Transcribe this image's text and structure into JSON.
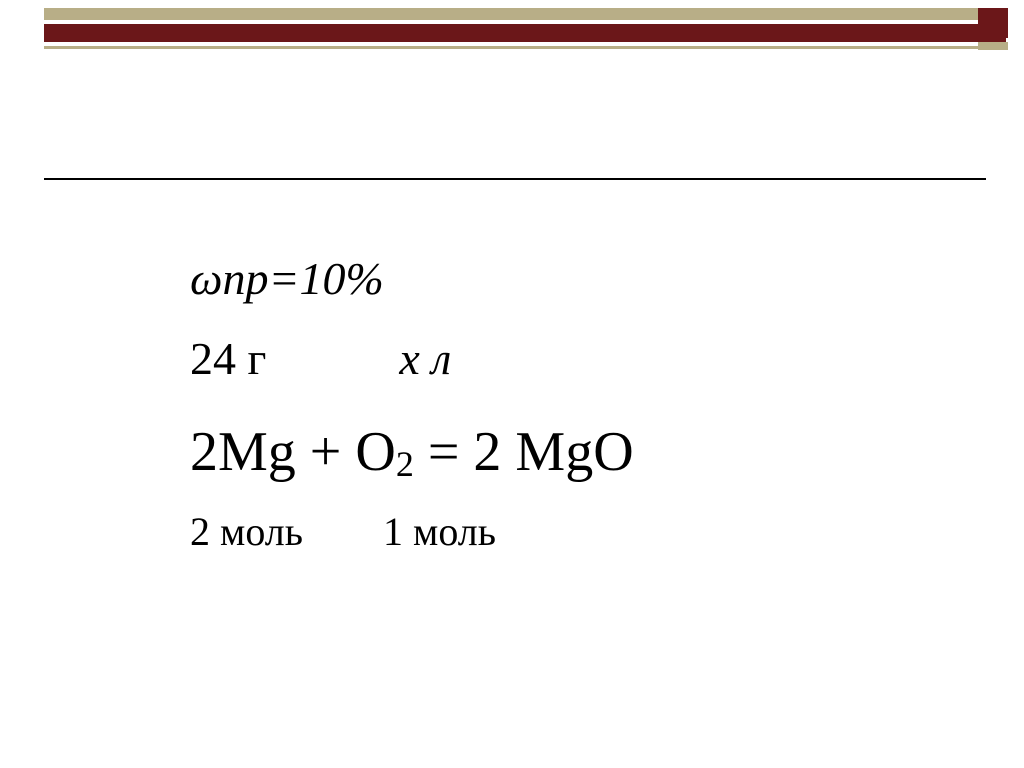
{
  "colors": {
    "beige": "#b8ae87",
    "red": "#6b1719",
    "black": "#000000",
    "white": "#ffffff"
  },
  "line1": "ωпр=10%",
  "line2_a": "24 г",
  "line2_b": "х л",
  "eq_a": "2Mg + O",
  "eq_sub1": "2",
  "eq_b": "  = 2 MgO",
  "line4_a": "2 моль",
  "line4_b": "1 моль"
}
